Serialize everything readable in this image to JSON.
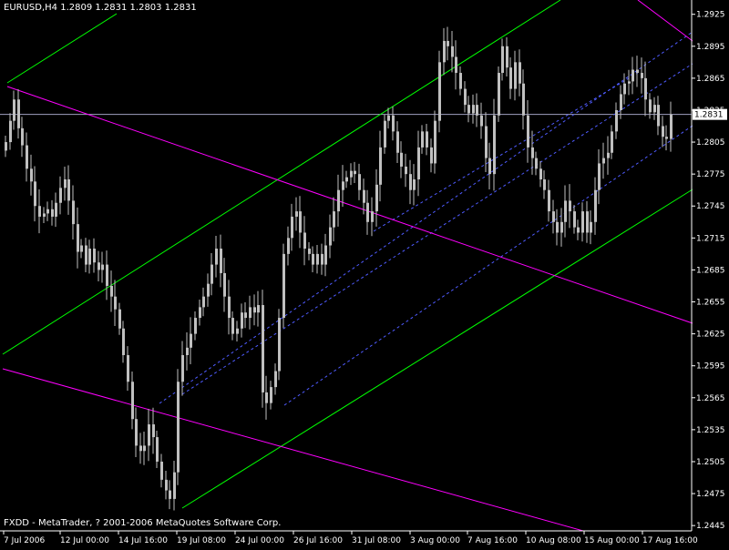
{
  "header": {
    "symbol_info": "EURUSD,H4",
    "ohlc": "1.2809 1.2831 1.2803 1.2831"
  },
  "footer": {
    "copyright": "FXDD - MetaTrader, ? 2001-2006 MetaQuotes Software Corp."
  },
  "colors": {
    "background": "#000000",
    "candle": "#c0c0c0",
    "axis": "#ffffff",
    "channel_outer": "#00ff00",
    "channel_inner": "#4f5bff",
    "resistance": "#ff00ff",
    "price_line": "#a0a0c0",
    "price_label_bg": "#ffffff",
    "price_label_text": "#000000"
  },
  "chart_data": {
    "type": "line",
    "title": "EURUSD,H4",
    "current_price": "1.2831",
    "ylim": [
      1.244,
      1.294
    ],
    "y_ticks": [
      "1.2925",
      "1.2895",
      "1.2865",
      "1.2835",
      "1.2805",
      "1.2775",
      "1.2745",
      "1.2715",
      "1.2685",
      "1.2655",
      "1.2625",
      "1.2595",
      "1.2565",
      "1.2535",
      "1.2505",
      "1.2475",
      "1.2445"
    ],
    "x_ticks": [
      "7 Jul 2006",
      "12 Jul 00:00",
      "14 Jul 16:00",
      "19 Jul 08:00",
      "24 Jul 00:00",
      "26 Jul 16:00",
      "31 Jul 08:00",
      "3 Aug 00:00",
      "7 Aug 16:00",
      "10 Aug 08:00",
      "15 Aug 00:00",
      "17 Aug 16:00"
    ],
    "series": [
      {
        "values": [
          1.2805,
          1.2825,
          1.2845,
          1.2818,
          1.2802,
          1.278,
          1.2768,
          1.2745,
          1.2735,
          1.2738,
          1.2742,
          1.2735,
          1.2748,
          1.2762,
          1.277,
          1.275,
          1.2728,
          1.2702,
          1.2708,
          1.269,
          1.2705,
          1.2692,
          1.2685,
          1.269,
          1.267,
          1.266,
          1.2648,
          1.263,
          1.2605,
          1.258,
          1.2545,
          1.252,
          1.2515,
          1.252,
          1.254,
          1.2528,
          1.2505,
          1.2488,
          1.2478,
          1.247,
          1.2495,
          1.258,
          1.2605,
          1.2612,
          1.2625,
          1.264,
          1.265,
          1.266,
          1.2672,
          1.269,
          1.2705,
          1.2682,
          1.266,
          1.264,
          1.2625,
          1.263,
          1.2645,
          1.264,
          1.265,
          1.2645,
          1.2652,
          1.257,
          1.256,
          1.2575,
          1.259,
          1.264,
          1.27,
          1.2715,
          1.2735,
          1.274,
          1.272,
          1.2705,
          1.27,
          1.269,
          1.27,
          1.269,
          1.2708,
          1.2725,
          1.274,
          1.276,
          1.2768,
          1.2772,
          1.2778,
          1.2775,
          1.276,
          1.2748,
          1.273,
          1.274,
          1.2765,
          1.28,
          1.2825,
          1.283,
          1.2815,
          1.2795,
          1.2782,
          1.2775,
          1.276,
          1.277,
          1.28,
          1.2815,
          1.28,
          1.2785,
          1.2825,
          1.288,
          1.29,
          1.2895,
          1.2885,
          1.287,
          1.2855,
          1.284,
          1.2832,
          1.284,
          1.283,
          1.282,
          1.279,
          1.2775,
          1.283,
          1.287,
          1.2895,
          1.2875,
          1.2855,
          1.288,
          1.286,
          1.283,
          1.28,
          1.279,
          1.278,
          1.277,
          1.276,
          1.274,
          1.273,
          1.272,
          1.273,
          1.275,
          1.274,
          1.2725,
          1.272,
          1.274,
          1.272,
          1.273,
          1.276,
          1.2785,
          1.279,
          1.2795,
          1.2815,
          1.2835,
          1.285,
          1.286,
          1.2862,
          1.2873,
          1.287,
          1.2865,
          1.2845,
          1.2833,
          1.284,
          1.282,
          1.281,
          1.2808,
          1.2831
        ]
      }
    ],
    "overlays": [
      {
        "kind": "channel-outer",
        "points": [
          [
            1.2868,
            1.2934
          ]
        ]
      },
      {
        "kind": "resistance",
        "points": []
      }
    ],
    "grid": false,
    "legend": "none"
  }
}
